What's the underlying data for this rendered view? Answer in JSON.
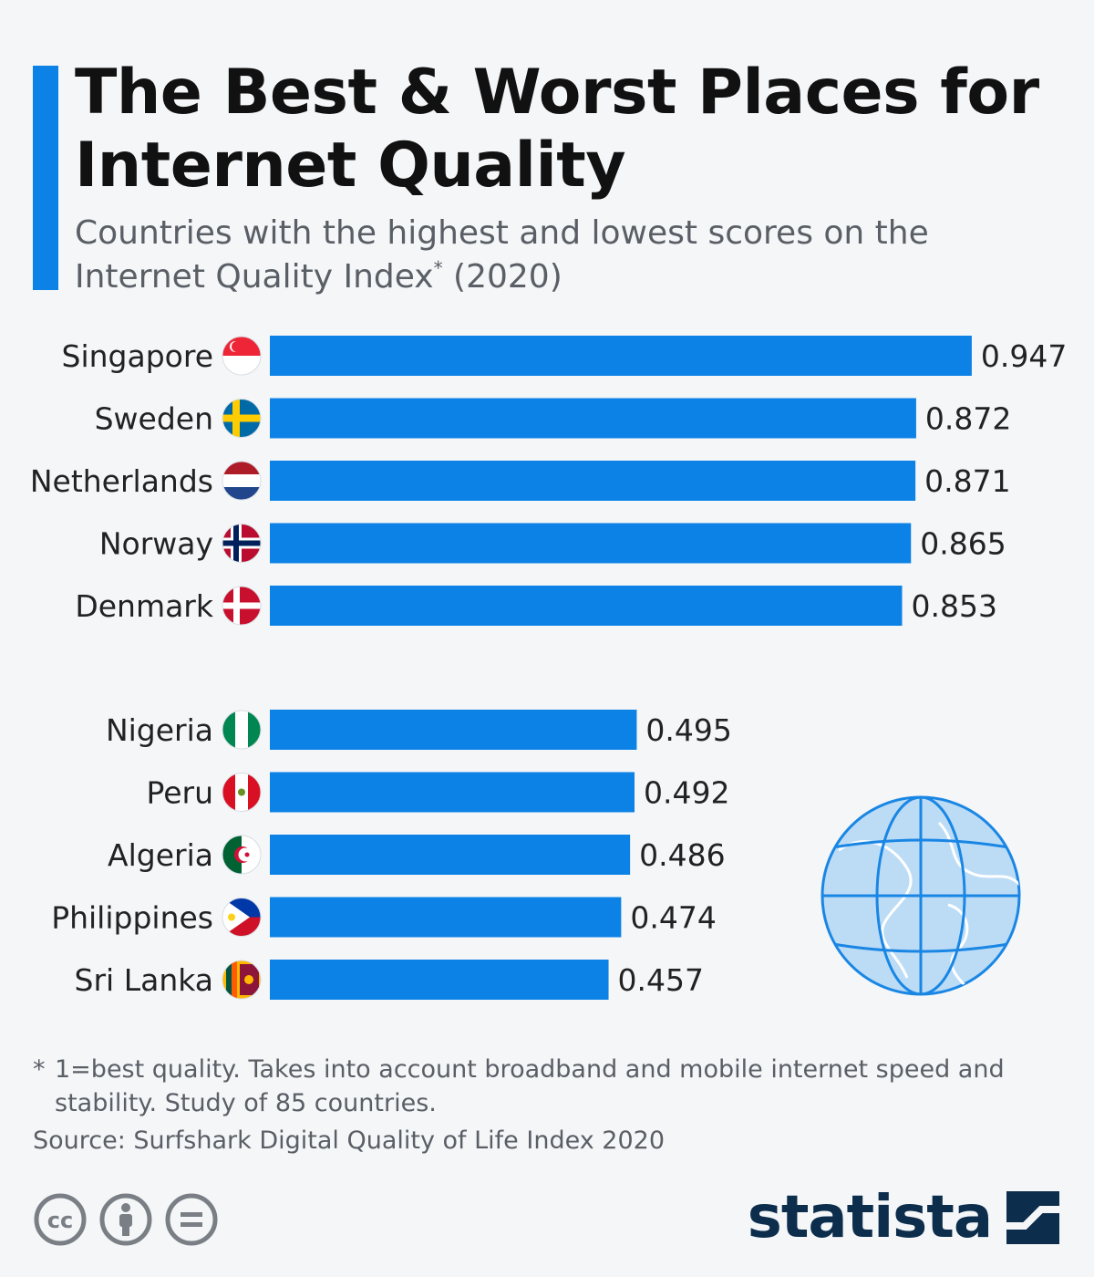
{
  "header": {
    "title": "The Best & Worst Places for Internet Quality",
    "subtitle_main": "Countries with the highest and lowest scores on the Internet Quality Index",
    "subtitle_mark": "*",
    "subtitle_year": "(2020)"
  },
  "colors": {
    "bar": "#0d82e6",
    "accent": "#0d82e6",
    "title": "#111111",
    "muted": "#5a5f66",
    "background": "#f4f6f8",
    "brand": "#0c2d4c"
  },
  "chart_data": {
    "type": "bar",
    "orientation": "horizontal",
    "title": "The Best & Worst Places for Internet Quality",
    "subtitle": "Countries with the highest and lowest scores on the Internet Quality Index* (2020)",
    "xlim": [
      0,
      1
    ],
    "grid": false,
    "groups": [
      {
        "categories": [
          "Singapore",
          "Sweden",
          "Netherlands",
          "Norway",
          "Denmark"
        ],
        "values": [
          0.947,
          0.872,
          0.871,
          0.865,
          0.853
        ],
        "labels": [
          "0.947",
          "0.872",
          "0.871",
          "0.865",
          "0.853"
        ],
        "flags": [
          "singapore-flag-icon",
          "sweden-flag-icon",
          "netherlands-flag-icon",
          "norway-flag-icon",
          "denmark-flag-icon"
        ]
      },
      {
        "categories": [
          "Nigeria",
          "Peru",
          "Algeria",
          "Philippines",
          "Sri Lanka"
        ],
        "values": [
          0.495,
          0.492,
          0.486,
          0.474,
          0.457
        ],
        "labels": [
          "0.495",
          "0.492",
          "0.486",
          "0.474",
          "0.457"
        ],
        "flags": [
          "nigeria-flag-icon",
          "peru-flag-icon",
          "algeria-flag-icon",
          "philippines-flag-icon",
          "sri-lanka-flag-icon"
        ]
      }
    ]
  },
  "footer": {
    "footnote_mark": "*",
    "footnote": "1=best quality. Takes into account broadband and mobile internet speed and stability. Study of 85 countries.",
    "source": "Source: Surfshark Digital Quality of Life Index 2020",
    "license_icons": [
      "cc-icon",
      "attribution-icon",
      "no-derivatives-icon"
    ],
    "brand": "statista",
    "brand_icon": "statista-logo-icon"
  },
  "decoration": {
    "icon": "globe-icon"
  }
}
